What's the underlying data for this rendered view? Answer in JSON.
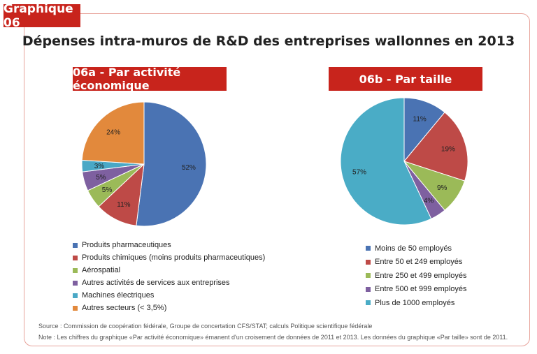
{
  "badge": "Graphique 06",
  "title": "Dépenses intra-muros de R&D des entreprises wallonnes en 2013",
  "chart_data": [
    {
      "type": "pie",
      "title": "06a - Par activité économique",
      "slices": [
        {
          "label": "Produits pharmaceutiques",
          "value": 52,
          "display": "52%",
          "color": "#4a73b3"
        },
        {
          "label": "Produits chimiques (moins produits pharmaceutiques)",
          "value": 11,
          "display": "11%",
          "color": "#be4a47"
        },
        {
          "label": "Aérospatial",
          "value": 5,
          "display": "5%",
          "color": "#9bba58"
        },
        {
          "label": "Autres activités de services aux entreprises",
          "value": 5,
          "display": "5%",
          "color": "#7e60a0"
        },
        {
          "label": "Machines électriques",
          "value": 3,
          "display": "3%",
          "color": "#4aa8c6"
        },
        {
          "label": "Autres secteurs (< 3,5%)",
          "value": 24,
          "display": "24%",
          "color": "#e2893c"
        }
      ]
    },
    {
      "type": "pie",
      "title": "06b - Par taille",
      "slices": [
        {
          "label": "Moins de 50 employés",
          "value": 11,
          "display": "11%",
          "color": "#4a73b3"
        },
        {
          "label": "Entre 50 et 249 employés",
          "value": 19,
          "display": "19%",
          "color": "#be4a47"
        },
        {
          "label": "Entre 250 et 499 employés",
          "value": 9,
          "display": "9%",
          "color": "#9bba58"
        },
        {
          "label": "Entre 500 et 999 employés",
          "value": 4,
          "display": "4%",
          "color": "#7e60a0"
        },
        {
          "label": "Plus de 1000 employés",
          "value": 57,
          "display": "57%",
          "color": "#4aacc6"
        }
      ]
    }
  ],
  "source": "Source : Commission de coopération fédérale, Groupe de concertation CFS/STAT; calculs Politique scientifique fédérale",
  "note": "Note : Les chiffres du graphique «Par activité économique» émanent d'un croisement de données de 2011 et 2013. Les données du graphique «Par taille» sont de 2011."
}
